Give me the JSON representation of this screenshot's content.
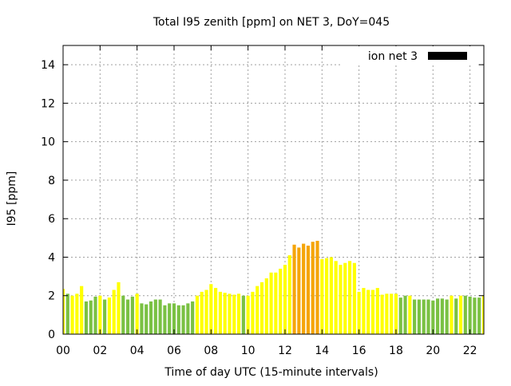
{
  "chart_data": {
    "type": "bar",
    "title": "Total I95 zenith [ppm] on NET 3, DoY=045",
    "xlabel": "Time of day UTC (15-minute intervals)",
    "ylabel": "I95 [ppm]",
    "xlim": [
      0,
      22.75
    ],
    "ylim": [
      0,
      15
    ],
    "xticks": [
      "00",
      "02",
      "04",
      "06",
      "08",
      "10",
      "12",
      "14",
      "16",
      "18",
      "20",
      "22"
    ],
    "yticks": [
      "0",
      "2",
      "4",
      "6",
      "8",
      "10",
      "12",
      "14"
    ],
    "grid": true,
    "legend": {
      "label": "ion net 3",
      "placement": "top-right"
    },
    "colors": {
      "green": "#7ac143",
      "yellow": "#ffff00",
      "orange": "#f5a50a",
      "legend_swatch": "#000000",
      "grid": "#a0a0a0"
    },
    "bin_hours": 0.25,
    "values": [
      2.35,
      2.1,
      2.0,
      2.1,
      2.5,
      1.7,
      1.75,
      1.95,
      2.0,
      1.8,
      1.9,
      2.3,
      2.7,
      2.0,
      1.8,
      1.95,
      2.1,
      1.6,
      1.55,
      1.7,
      1.8,
      1.8,
      1.5,
      1.6,
      1.6,
      1.5,
      1.5,
      1.6,
      1.7,
      2.0,
      2.2,
      2.3,
      2.6,
      2.4,
      2.2,
      2.15,
      2.1,
      2.05,
      2.1,
      2.0,
      2.0,
      2.2,
      2.5,
      2.7,
      2.9,
      3.2,
      3.2,
      3.4,
      3.6,
      4.1,
      4.65,
      4.5,
      4.7,
      4.6,
      4.8,
      4.85,
      3.9,
      3.95,
      4.0,
      3.8,
      3.6,
      3.7,
      3.8,
      3.7,
      2.2,
      2.4,
      2.3,
      2.3,
      2.4,
      2.05,
      2.1,
      2.1,
      2.1,
      1.9,
      2.0,
      2.0,
      1.8,
      1.8,
      1.8,
      1.8,
      1.75,
      1.85,
      1.85,
      1.8,
      2.0,
      1.85,
      2.0,
      2.0,
      1.95,
      1.9,
      1.9,
      2.0,
      2.0,
      2.1
    ],
    "colors_by_bin": [
      "yellow",
      "green",
      "yellow",
      "yellow",
      "yellow",
      "green",
      "green",
      "green",
      "yellow",
      "green",
      "yellow",
      "yellow",
      "yellow",
      "green",
      "green",
      "green",
      "yellow",
      "green",
      "green",
      "green",
      "green",
      "green",
      "green",
      "green",
      "green",
      "green",
      "green",
      "green",
      "green",
      "yellow",
      "yellow",
      "yellow",
      "yellow",
      "yellow",
      "yellow",
      "yellow",
      "yellow",
      "yellow",
      "yellow",
      "green",
      "yellow",
      "yellow",
      "yellow",
      "yellow",
      "yellow",
      "yellow",
      "yellow",
      "yellow",
      "yellow",
      "yellow",
      "orange",
      "orange",
      "orange",
      "orange",
      "orange",
      "orange",
      "yellow",
      "yellow",
      "yellow",
      "yellow",
      "yellow",
      "yellow",
      "yellow",
      "yellow",
      "yellow",
      "yellow",
      "yellow",
      "yellow",
      "yellow",
      "yellow",
      "yellow",
      "yellow",
      "yellow",
      "green",
      "green",
      "yellow",
      "green",
      "green",
      "green",
      "green",
      "green",
      "green",
      "green",
      "green",
      "yellow",
      "green",
      "yellow",
      "green",
      "green",
      "green",
      "green",
      "yellow",
      "green",
      "yellow"
    ]
  }
}
